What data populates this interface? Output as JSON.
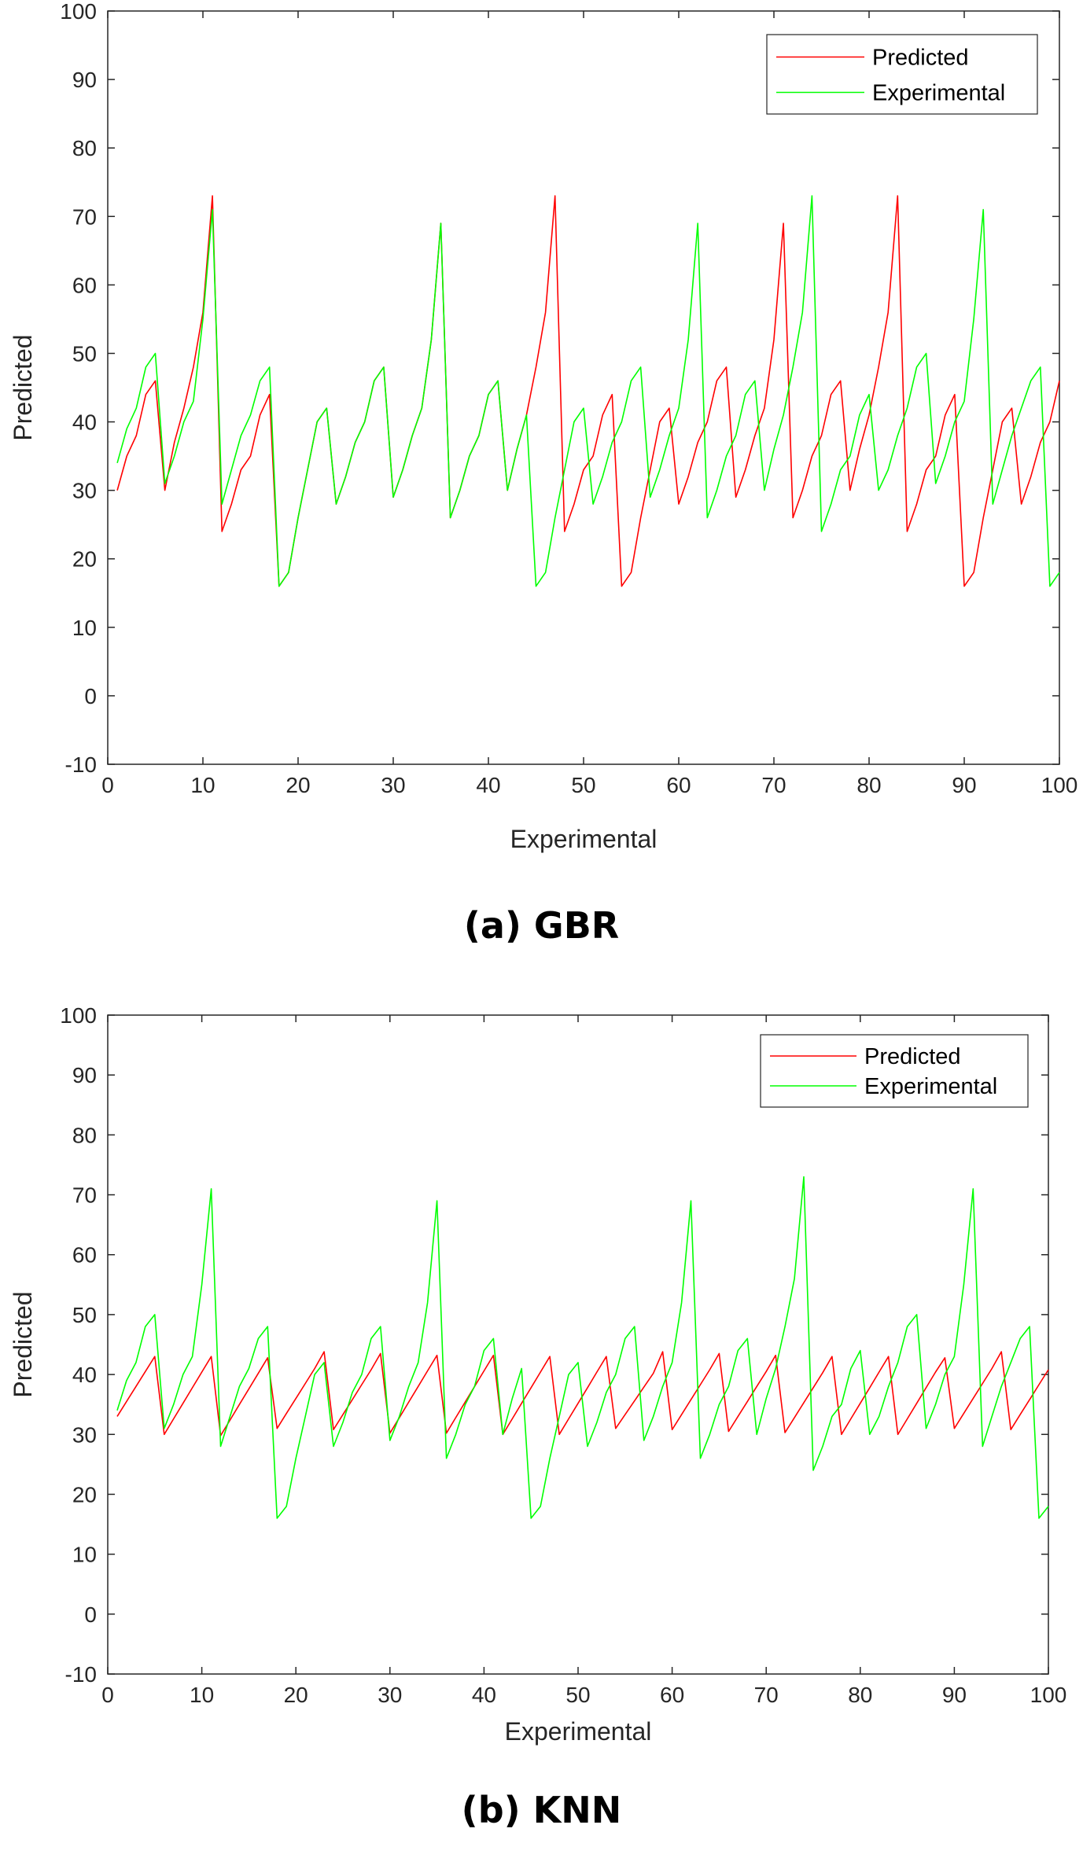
{
  "figure": {
    "captions": [
      "(a) GBR",
      "(b) KNN"
    ]
  },
  "chart_data": [
    {
      "type": "line",
      "caption": "(a) GBR",
      "xlabel": "Experimental",
      "ylabel": "Predicted",
      "xlim": [
        0,
        100
      ],
      "ylim": [
        -10,
        100
      ],
      "xticks": [
        0,
        10,
        20,
        30,
        40,
        50,
        60,
        70,
        80,
        90,
        100
      ],
      "yticks": [
        -10,
        0,
        10,
        20,
        30,
        40,
        50,
        60,
        70,
        80,
        90,
        100
      ],
      "grid": false,
      "legend_position": "top-right",
      "x": [
        1,
        2,
        3,
        4,
        5,
        6,
        7,
        8,
        9,
        10,
        11,
        12,
        13,
        14,
        15,
        16,
        17,
        18,
        19,
        20,
        21,
        22,
        23,
        24,
        25,
        26,
        27,
        28,
        29,
        30,
        31,
        32,
        33,
        34,
        35,
        36,
        37,
        38,
        39,
        40,
        41,
        42,
        43,
        44,
        45,
        46,
        47,
        48,
        49,
        50,
        51,
        52,
        53,
        54,
        55,
        56,
        57,
        58,
        59,
        60,
        61,
        62,
        63,
        64,
        65,
        66,
        67,
        68,
        69,
        70,
        71,
        72,
        73,
        74,
        75,
        76,
        77,
        78,
        79,
        80,
        81,
        82,
        83,
        84,
        85,
        86,
        87,
        88,
        89,
        90,
        91,
        92,
        93,
        94,
        95,
        96,
        97,
        98,
        99,
        100
      ],
      "series": [
        {
          "name": "Predicted",
          "color": "#ff0000",
          "values": [
            30,
            35,
            38,
            44,
            46,
            30,
            37,
            42,
            48,
            56,
            73,
            24,
            28,
            33,
            35,
            41,
            44,
            16,
            18,
            26,
            33,
            40,
            42,
            28,
            32,
            37,
            40,
            46,
            48,
            29,
            33,
            38,
            42,
            52,
            69,
            26,
            30,
            35,
            38,
            44,
            46,
            30,
            36,
            41,
            48,
            56,
            73,
            24,
            28,
            33,
            35,
            41,
            44,
            16,
            18,
            26,
            33,
            40,
            42,
            28,
            32,
            37,
            40,
            46,
            48,
            29,
            33,
            38,
            42,
            52,
            69,
            26,
            30,
            35,
            38,
            44,
            46,
            30,
            36,
            41,
            48,
            56,
            73,
            24,
            28,
            33,
            35,
            41,
            44,
            16,
            18,
            26,
            33,
            40,
            42,
            28,
            32,
            37,
            40,
            46
          ]
        },
        {
          "name": "Experimental",
          "color": "#00ff00",
          "values": [
            34,
            39,
            42,
            48,
            50,
            31,
            35,
            40,
            43,
            55,
            71,
            28,
            33,
            38,
            41,
            46,
            48,
            16,
            18,
            26,
            33,
            40,
            42,
            28,
            32,
            37,
            40,
            46,
            48,
            29,
            33,
            38,
            42,
            52,
            69,
            26,
            30,
            35,
            38,
            44,
            46,
            30,
            36,
            41,
            16,
            18,
            26,
            33,
            40,
            42,
            28,
            32,
            37,
            40,
            46,
            48,
            29,
            33,
            38,
            42,
            52,
            69,
            26,
            30,
            35,
            38,
            44,
            46,
            30,
            36,
            41,
            48,
            56,
            73,
            24,
            28,
            33,
            35,
            41,
            44,
            30,
            33,
            38,
            42,
            48,
            50,
            31,
            35,
            40,
            43,
            55,
            71,
            28,
            33,
            38,
            42,
            46,
            48,
            16,
            18
          ]
        }
      ]
    },
    {
      "type": "line",
      "caption": "(b) KNN",
      "xlabel": "Experimental",
      "ylabel": "Predicted",
      "xlim": [
        0,
        100
      ],
      "ylim": [
        -10,
        100
      ],
      "xticks": [
        0,
        10,
        20,
        30,
        40,
        50,
        60,
        70,
        80,
        90,
        100
      ],
      "yticks": [
        -10,
        0,
        10,
        20,
        30,
        40,
        50,
        60,
        70,
        80,
        90,
        100
      ],
      "grid": false,
      "legend_position": "top-right",
      "x": [
        1,
        2,
        3,
        4,
        5,
        6,
        7,
        8,
        9,
        10,
        11,
        12,
        13,
        14,
        15,
        16,
        17,
        18,
        19,
        20,
        21,
        22,
        23,
        24,
        25,
        26,
        27,
        28,
        29,
        30,
        31,
        32,
        33,
        34,
        35,
        36,
        37,
        38,
        39,
        40,
        41,
        42,
        43,
        44,
        45,
        46,
        47,
        48,
        49,
        50,
        51,
        52,
        53,
        54,
        55,
        56,
        57,
        58,
        59,
        60,
        61,
        62,
        63,
        64,
        65,
        66,
        67,
        68,
        69,
        70,
        71,
        72,
        73,
        74,
        75,
        76,
        77,
        78,
        79,
        80,
        81,
        82,
        83,
        84,
        85,
        86,
        87,
        88,
        89,
        90,
        91,
        92,
        93,
        94,
        95,
        96,
        97,
        98,
        99,
        100
      ],
      "series": [
        {
          "name": "Predicted",
          "color": "#ff0000",
          "values": [
            33,
            35.5,
            38,
            40.5,
            43,
            30,
            32.6,
            35.2,
            37.8,
            40.4,
            43,
            29.8,
            32.4,
            35,
            37.6,
            40.2,
            42.8,
            31,
            33.5,
            36,
            38.5,
            41,
            43.8,
            30.8,
            33.3,
            35.8,
            38.3,
            40.8,
            43.5,
            30.2,
            32.8,
            35.4,
            38,
            40.6,
            43.2,
            30.2,
            32.8,
            35.4,
            38,
            40.6,
            43.2,
            30,
            32.6,
            35.2,
            37.8,
            40.4,
            43,
            30,
            32.6,
            35.2,
            37.8,
            40.4,
            43,
            31,
            33.3,
            35.6,
            37.9,
            40.2,
            43.8,
            30.8,
            33.3,
            35.8,
            38.3,
            40.8,
            43.5,
            30.5,
            33,
            35.5,
            38,
            40.5,
            43.2,
            30.3,
            32.8,
            35.3,
            37.8,
            40.3,
            43,
            30,
            32.6,
            35.2,
            37.8,
            40.4,
            43,
            30,
            32.6,
            35.2,
            37.8,
            40.4,
            42.8,
            31,
            33.5,
            36,
            38.5,
            41,
            43.8,
            30.8,
            33.3,
            35.8,
            38.3,
            40.8
          ]
        },
        {
          "name": "Experimental",
          "color": "#00ff00",
          "values": [
            34,
            39,
            42,
            48,
            50,
            31,
            35,
            40,
            43,
            55,
            71,
            28,
            33,
            38,
            41,
            46,
            48,
            16,
            18,
            26,
            33,
            40,
            42,
            28,
            32,
            37,
            40,
            46,
            48,
            29,
            33,
            38,
            42,
            52,
            69,
            26,
            30,
            35,
            38,
            44,
            46,
            30,
            36,
            41,
            16,
            18,
            26,
            33,
            40,
            42,
            28,
            32,
            37,
            40,
            46,
            48,
            29,
            33,
            38,
            42,
            52,
            69,
            26,
            30,
            35,
            38,
            44,
            46,
            30,
            36,
            41,
            48,
            56,
            73,
            24,
            28,
            33,
            35,
            41,
            44,
            30,
            33,
            38,
            42,
            48,
            50,
            31,
            35,
            40,
            43,
            55,
            71,
            28,
            33,
            38,
            42,
            46,
            48,
            16,
            18
          ]
        }
      ]
    }
  ]
}
